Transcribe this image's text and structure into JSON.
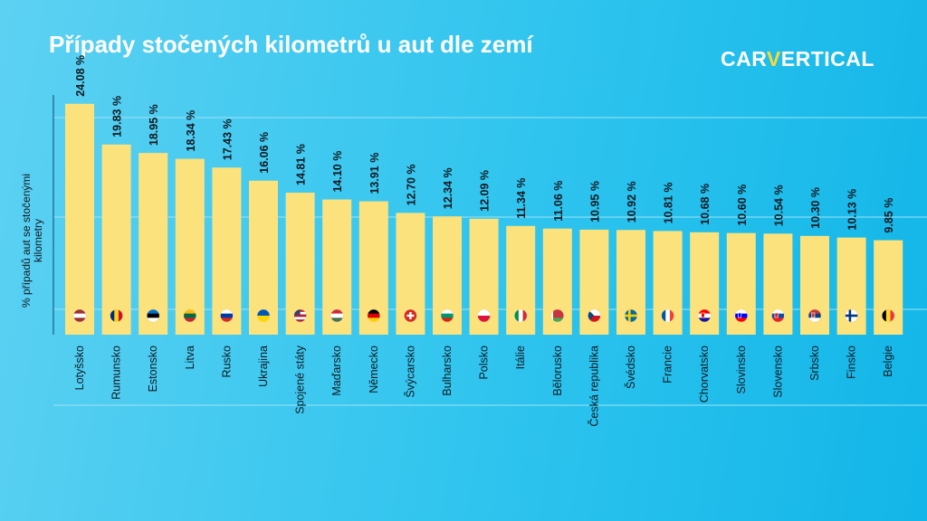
{
  "title": "Případy stočených kilometrů u aut dle zemí",
  "logo": {
    "prefix": "CAR",
    "accent": "V",
    "suffix": "ERTICAL"
  },
  "colors": {
    "bar": "#fce27c",
    "text": "#101820",
    "grid": "#9fe3f6",
    "axis": "#0b4a66"
  },
  "chart_data": {
    "type": "bar",
    "title": "Případy stočených kilometrů u aut dle zemí",
    "ylabel": "% případů aut se stočenými kilometry",
    "xlabel": "",
    "ylim": [
      0,
      25
    ],
    "grid": true,
    "categories": [
      "Lotyšsko",
      "Rumunsko",
      "Estonsko",
      "Litva",
      "Rusko",
      "Ukrajina",
      "Spojené státy",
      "Maďarsko",
      "Německo",
      "Švýcarsko",
      "Bulharsko",
      "Polsko",
      "Itálie",
      "Bělorusko",
      "Česká republika",
      "Švédsko",
      "Francie",
      "Chorvatsko",
      "Slovinsko",
      "Slovensko",
      "Srbsko",
      "Finsko",
      "Belgie"
    ],
    "values": [
      24.08,
      19.83,
      18.95,
      18.34,
      17.43,
      16.06,
      14.81,
      14.1,
      13.91,
      12.7,
      12.34,
      12.09,
      11.34,
      11.06,
      10.95,
      10.92,
      10.81,
      10.68,
      10.6,
      10.54,
      10.3,
      10.13,
      9.85
    ],
    "value_labels": [
      "24.08 %",
      "19.83 %",
      "18.95 %",
      "18.34 %",
      "17.43 %",
      "16.06 %",
      "14.81 %",
      "14.10 %",
      "13.91 %",
      "12.70 %",
      "12.34 %",
      "12.09 %",
      "11.34 %",
      "11.06 %",
      "10.95 %",
      "10.92 %",
      "10.81 %",
      "10.68 %",
      "10.60 %",
      "10.54 %",
      "10.30 %",
      "10.13 %",
      "9.85 %"
    ],
    "flags": [
      {
        "country": "Lotyšsko",
        "stripes": [
          "#9e3039",
          "#ffffff",
          "#9e3039"
        ],
        "dir": "h"
      },
      {
        "country": "Rumunsko",
        "stripes": [
          "#002b7f",
          "#fcd116",
          "#ce1126"
        ],
        "dir": "v"
      },
      {
        "country": "Estonsko",
        "stripes": [
          "#0072ce",
          "#000000",
          "#ffffff"
        ],
        "dir": "h"
      },
      {
        "country": "Litva",
        "stripes": [
          "#fdb913",
          "#006a44",
          "#c1272d"
        ],
        "dir": "h"
      },
      {
        "country": "Rusko",
        "stripes": [
          "#ffffff",
          "#0039a6",
          "#d52b1e"
        ],
        "dir": "h"
      },
      {
        "country": "Ukrajina",
        "stripes": [
          "#0057b7",
          "#ffd700"
        ],
        "dir": "h"
      },
      {
        "country": "Spojené státy",
        "stripes": [
          "#b22234",
          "#ffffff",
          "#b22234",
          "#ffffff",
          "#b22234"
        ],
        "dir": "h",
        "canton": "#3c3b6e"
      },
      {
        "country": "Maďarsko",
        "stripes": [
          "#ce2939",
          "#ffffff",
          "#477050"
        ],
        "dir": "h"
      },
      {
        "country": "Německo",
        "stripes": [
          "#000000",
          "#dd0000",
          "#ffce00"
        ],
        "dir": "h"
      },
      {
        "country": "Švýcarsko",
        "stripes": [
          "#d52b1e"
        ],
        "dir": "h",
        "cross": "#ffffff"
      },
      {
        "country": "Bulharsko",
        "stripes": [
          "#ffffff",
          "#00966e",
          "#d62612"
        ],
        "dir": "h"
      },
      {
        "country": "Polsko",
        "stripes": [
          "#ffffff",
          "#dc143c"
        ],
        "dir": "h"
      },
      {
        "country": "Itálie",
        "stripes": [
          "#009246",
          "#ffffff",
          "#ce2b37"
        ],
        "dir": "v"
      },
      {
        "country": "Bělorusko",
        "stripes": [
          "#c8313e",
          "#c8313e",
          "#4aa657"
        ],
        "dir": "h",
        "hoist": "#ffffff"
      },
      {
        "country": "Česká republika",
        "stripes": [
          "#ffffff",
          "#d7141a"
        ],
        "dir": "h",
        "triangle": "#11457e"
      },
      {
        "country": "Švédsko",
        "stripes": [
          "#006aa7"
        ],
        "dir": "h",
        "nordic": "#fecc00"
      },
      {
        "country": "Francie",
        "stripes": [
          "#0055a4",
          "#ffffff",
          "#ef4135"
        ],
        "dir": "v"
      },
      {
        "country": "Chorvatsko",
        "stripes": [
          "#ff0000",
          "#ffffff",
          "#171796"
        ],
        "dir": "h",
        "emblem": "#ff0000"
      },
      {
        "country": "Slovinsko",
        "stripes": [
          "#ffffff",
          "#0000ff",
          "#ff0000"
        ],
        "dir": "h",
        "emblem": "#0000ff"
      },
      {
        "country": "Slovensko",
        "stripes": [
          "#ffffff",
          "#0b4ea2",
          "#ee1c25"
        ],
        "dir": "h",
        "emblem": "#ee1c25"
      },
      {
        "country": "Srbsko",
        "stripes": [
          "#c6363c",
          "#0c4076",
          "#ffffff"
        ],
        "dir": "h",
        "emblem": "#c6363c"
      },
      {
        "country": "Finsko",
        "stripes": [
          "#ffffff"
        ],
        "dir": "h",
        "nordic": "#003580"
      },
      {
        "country": "Belgie",
        "stripes": [
          "#000000",
          "#fdda24",
          "#ef3340"
        ],
        "dir": "v"
      }
    ]
  }
}
